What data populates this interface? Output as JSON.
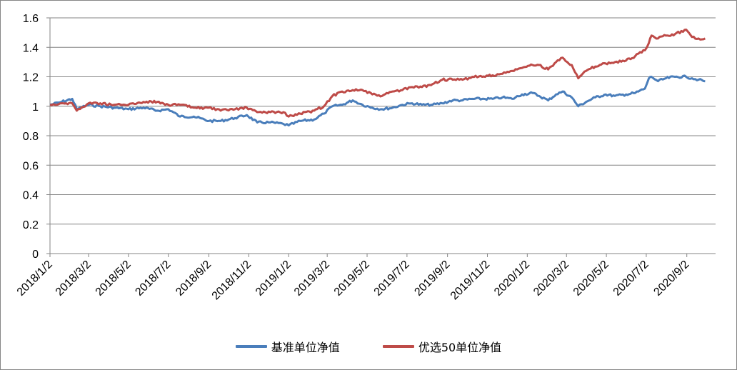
{
  "chart_data": {
    "type": "line",
    "title": "",
    "xlabel": "",
    "ylabel": "",
    "ylim": [
      0,
      1.6
    ],
    "yticks": [
      "0",
      "0.2",
      "0.4",
      "0.6",
      "0.8",
      "1",
      "1.2",
      "1.4",
      "1.6"
    ],
    "xticks": [
      "2018/1/2",
      "2018/3/2",
      "2018/5/2",
      "2018/7/2",
      "2018/9/2",
      "2018/11/2",
      "2019/1/2",
      "2019/3/2",
      "2019/5/2",
      "2019/7/2",
      "2019/9/2",
      "2019/11/2",
      "2020/1/2",
      "2020/3/2",
      "2020/5/2",
      "2020/7/2",
      "2020/9/2"
    ],
    "grid": true,
    "legend_position": "bottom",
    "series": [
      {
        "name": "基准单位净值",
        "color": "#4a7ebb",
        "x": [
          "2018/1/2",
          "2018/1/20",
          "2018/2/5",
          "2018/2/12",
          "2018/3/2",
          "2018/3/20",
          "2018/4/10",
          "2018/5/2",
          "2018/5/25",
          "2018/6/15",
          "2018/7/2",
          "2018/7/20",
          "2018/8/10",
          "2018/9/2",
          "2018/9/20",
          "2018/10/12",
          "2018/10/30",
          "2018/11/15",
          "2018/12/5",
          "2018/12/25",
          "2019/1/2",
          "2019/1/20",
          "2019/2/10",
          "2019/2/25",
          "2019/3/10",
          "2019/3/25",
          "2019/4/10",
          "2019/4/25",
          "2019/5/10",
          "2019/5/25",
          "2019/6/10",
          "2019/6/25",
          "2019/7/10",
          "2019/7/25",
          "2019/8/10",
          "2019/8/25",
          "2019/9/10",
          "2019/9/25",
          "2019/10/10",
          "2019/10/25",
          "2019/11/10",
          "2019/11/25",
          "2019/12/10",
          "2019/12/25",
          "2020/1/10",
          "2020/1/20",
          "2020/2/3",
          "2020/2/15",
          "2020/2/25",
          "2020/3/10",
          "2020/3/20",
          "2020/4/1",
          "2020/4/15",
          "2020/5/1",
          "2020/5/15",
          "2020/6/1",
          "2020/6/15",
          "2020/6/30",
          "2020/7/6",
          "2020/7/10",
          "2020/7/20",
          "2020/8/1",
          "2020/8/15",
          "2020/9/1",
          "2020/9/10",
          "2020/9/20",
          "2020/9/30"
        ],
        "y": [
          1.01,
          1.03,
          1.05,
          0.98,
          1.01,
          1.0,
          0.99,
          0.98,
          0.99,
          0.97,
          0.98,
          0.93,
          0.93,
          0.9,
          0.9,
          0.92,
          0.94,
          0.89,
          0.89,
          0.88,
          0.87,
          0.9,
          0.91,
          0.95,
          1.0,
          1.01,
          1.04,
          1.01,
          0.99,
          0.98,
          0.99,
          1.01,
          1.02,
          1.01,
          1.01,
          1.02,
          1.04,
          1.04,
          1.05,
          1.05,
          1.05,
          1.06,
          1.05,
          1.08,
          1.09,
          1.07,
          1.04,
          1.08,
          1.1,
          1.06,
          1.0,
          1.03,
          1.06,
          1.08,
          1.07,
          1.08,
          1.09,
          1.12,
          1.19,
          1.2,
          1.17,
          1.19,
          1.2,
          1.2,
          1.19,
          1.18,
          1.17
        ]
      },
      {
        "name": "优选50单位净值",
        "color": "#be4b48",
        "x": [
          "2018/1/2",
          "2018/1/20",
          "2018/2/5",
          "2018/2/12",
          "2018/3/2",
          "2018/3/20",
          "2018/4/10",
          "2018/5/2",
          "2018/5/25",
          "2018/6/15",
          "2018/7/2",
          "2018/7/20",
          "2018/8/10",
          "2018/9/2",
          "2018/9/20",
          "2018/10/12",
          "2018/10/30",
          "2018/11/15",
          "2018/12/5",
          "2018/12/25",
          "2019/1/2",
          "2019/1/20",
          "2019/2/10",
          "2019/2/25",
          "2019/3/10",
          "2019/3/25",
          "2019/4/10",
          "2019/4/25",
          "2019/5/10",
          "2019/5/25",
          "2019/6/10",
          "2019/6/25",
          "2019/7/10",
          "2019/7/25",
          "2019/8/10",
          "2019/8/25",
          "2019/9/10",
          "2019/9/25",
          "2019/10/10",
          "2019/10/25",
          "2019/11/10",
          "2019/11/25",
          "2019/12/10",
          "2019/12/25",
          "2020/1/10",
          "2020/1/20",
          "2020/2/3",
          "2020/2/15",
          "2020/2/25",
          "2020/3/10",
          "2020/3/20",
          "2020/4/1",
          "2020/4/15",
          "2020/5/1",
          "2020/5/15",
          "2020/6/1",
          "2020/6/15",
          "2020/6/30",
          "2020/7/6",
          "2020/7/10",
          "2020/7/20",
          "2020/8/1",
          "2020/8/15",
          "2020/9/1",
          "2020/9/10",
          "2020/9/20",
          "2020/9/30"
        ],
        "y": [
          1.01,
          1.02,
          1.02,
          0.97,
          1.02,
          1.02,
          1.01,
          1.01,
          1.03,
          1.03,
          1.01,
          1.01,
          0.99,
          0.99,
          0.97,
          0.98,
          0.99,
          0.96,
          0.96,
          0.96,
          0.93,
          0.95,
          0.97,
          1.0,
          1.07,
          1.1,
          1.11,
          1.11,
          1.08,
          1.07,
          1.1,
          1.11,
          1.13,
          1.13,
          1.15,
          1.18,
          1.18,
          1.18,
          1.2,
          1.2,
          1.21,
          1.22,
          1.24,
          1.26,
          1.28,
          1.28,
          1.25,
          1.3,
          1.33,
          1.28,
          1.19,
          1.24,
          1.27,
          1.29,
          1.3,
          1.31,
          1.34,
          1.38,
          1.43,
          1.48,
          1.46,
          1.48,
          1.49,
          1.52,
          1.47,
          1.46,
          1.46
        ]
      }
    ]
  }
}
